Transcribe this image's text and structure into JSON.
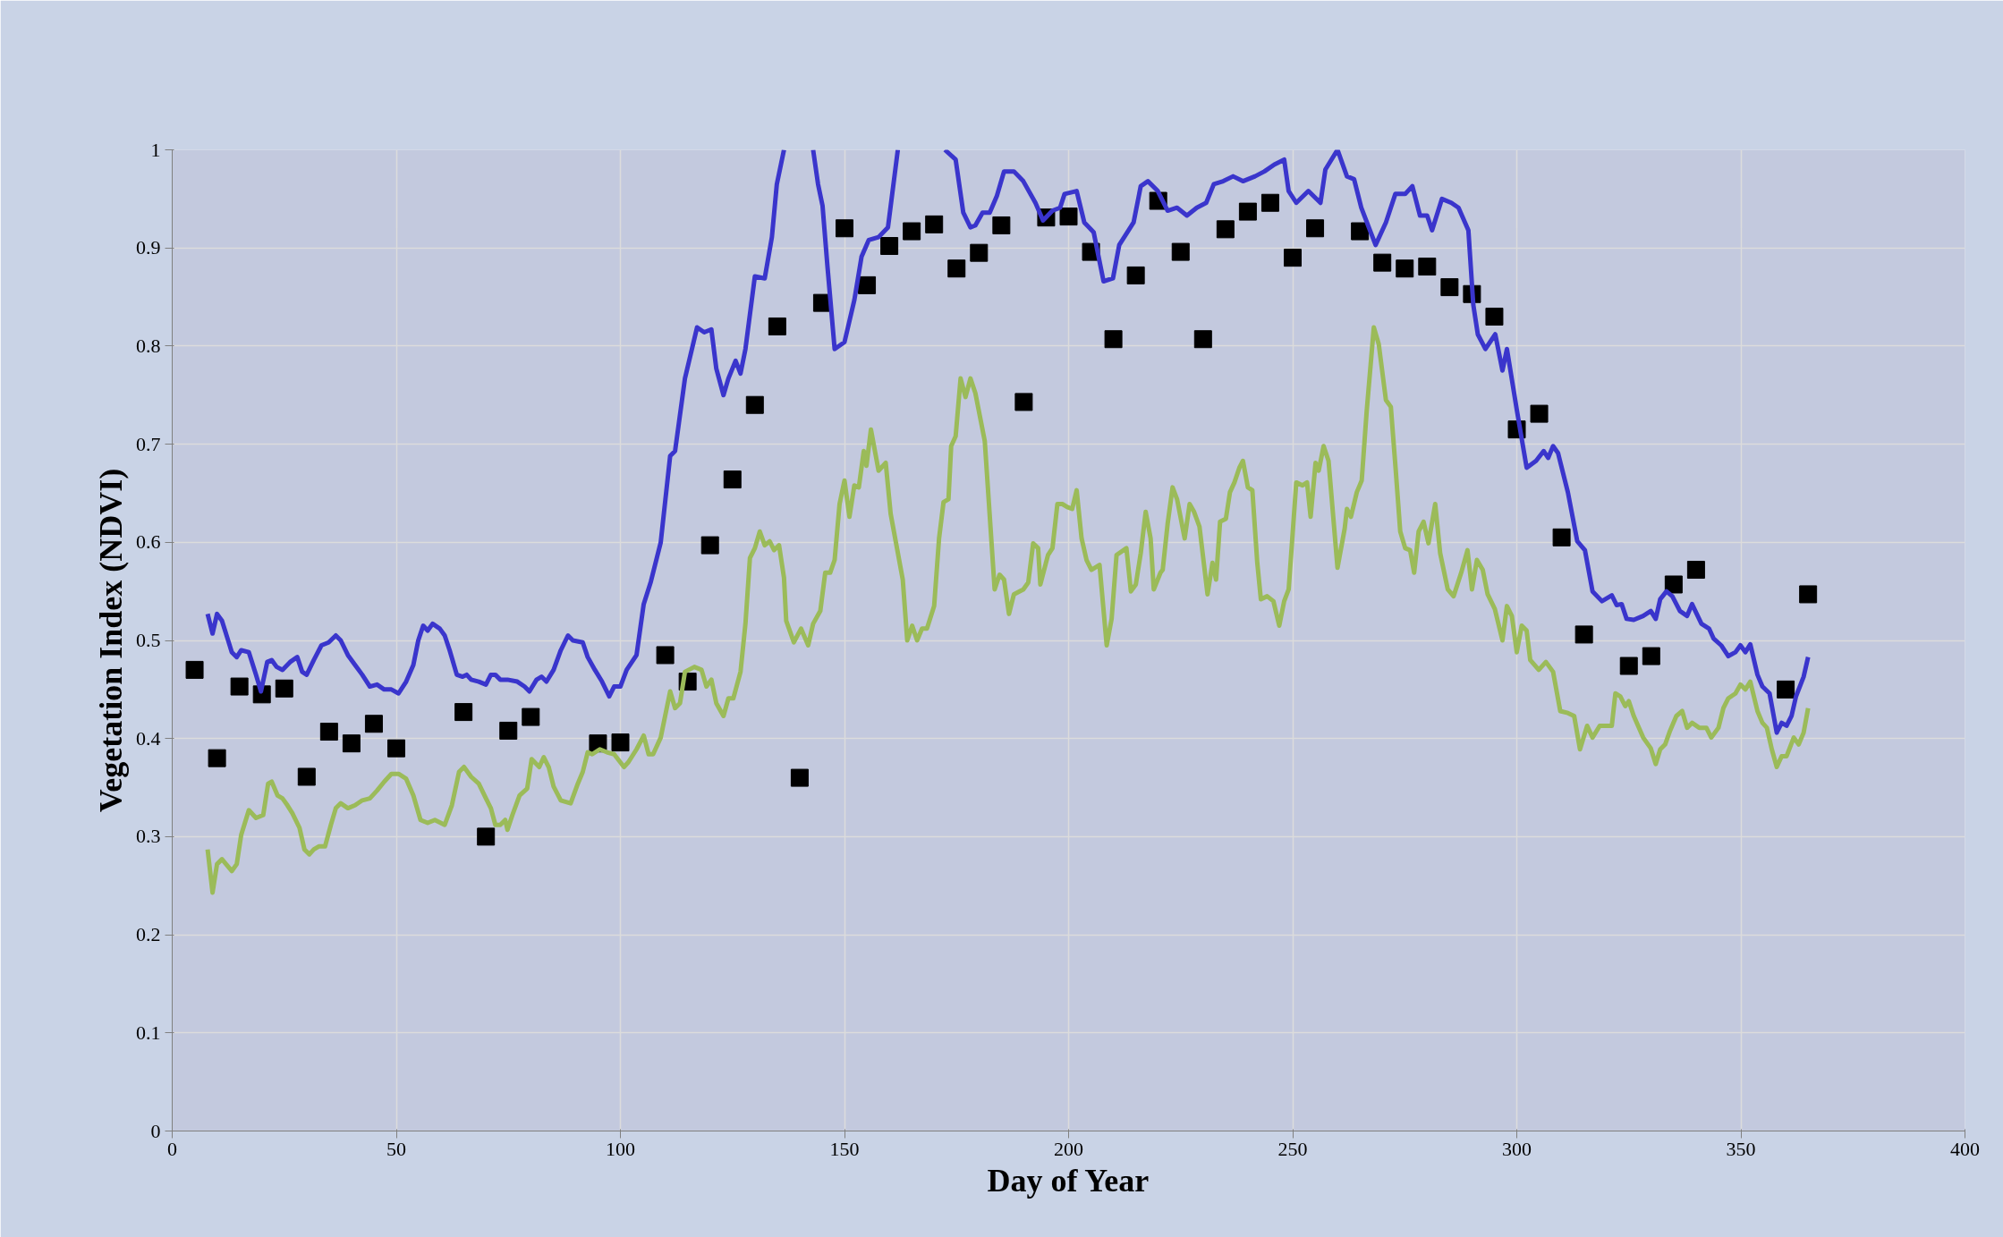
{
  "chart_data": {
    "type": "line",
    "xlabel": "Day of Year",
    "ylabel": "Vegetation Index (NDVI)",
    "xlim": [
      0,
      400
    ],
    "xticks": [
      0,
      50,
      100,
      150,
      200,
      250,
      300,
      350,
      400
    ],
    "ylim": [
      0,
      1
    ],
    "yticks": [
      0,
      0.1,
      0.2,
      0.3,
      0.4,
      0.5,
      0.6,
      0.7,
      0.8,
      0.9,
      1
    ],
    "grid": true,
    "series": [
      {
        "type": "line",
        "color": "#3a35cc",
        "marker": "none",
        "x": [
          7.9,
          9,
          10,
          11.1,
          13.3,
          14.4,
          15.4,
          17.1,
          18.7,
          19.8,
          21.2,
          22.2,
          23.3,
          24.6,
          26.3,
          27.9,
          29,
          30,
          31.6,
          33.3,
          34.9,
          36.5,
          37.6,
          39.2,
          40.8,
          42.4,
          44.1,
          45.7,
          47.3,
          48.9,
          50.5,
          52.2,
          53.8,
          54.9,
          56,
          57,
          58.1,
          59.7,
          60.8,
          61.9,
          63.5,
          64.8,
          65.7,
          66.7,
          68.4,
          70,
          71.1,
          72.1,
          73.2,
          74.8,
          77,
          78.6,
          79.7,
          81.3,
          82.4,
          83.5,
          85.1,
          86.7,
          88.3,
          89.4,
          91.6,
          92.7,
          94.3,
          95.9,
          97.5,
          98.6,
          100,
          101.4,
          103.6,
          105.2,
          106.8,
          109,
          111.1,
          112.2,
          114.4,
          117.1,
          118.7,
          120.3,
          121.4,
          123,
          124.1,
          125.7,
          126.8,
          127.9,
          130,
          132.2,
          133.8,
          134.9,
          136.5,
          140,
          143,
          144.1,
          145.1,
          146.2,
          147.8,
          150,
          152.2,
          153.8,
          155.4,
          157.6,
          159.7,
          161.9,
          167,
          172.4,
          174.8,
          176.5,
          178.1,
          179.2,
          180.8,
          182.4,
          184,
          185.6,
          187.8,
          189.9,
          192.6,
          194.3,
          196.4,
          198.1,
          199.1,
          201.8,
          203.5,
          205.6,
          207.8,
          209.9,
          211.3,
          214.5,
          216.1,
          217.7,
          219.9,
          222.1,
          224.2,
          226.4,
          228.6,
          230.7,
          232.4,
          234.5,
          236.7,
          238.9,
          241.6,
          243.7,
          245.9,
          248.1,
          249.1,
          250.8,
          253.5,
          256.2,
          257.3,
          260,
          262.1,
          263.7,
          265.3,
          268.5,
          270.8,
          272.9,
          275.1,
          276.7,
          278.4,
          280,
          281.1,
          283.3,
          285.4,
          287,
          289.2,
          290.3,
          291.3,
          293,
          295.2,
          296.8,
          297.8,
          300,
          302.2,
          304.3,
          306,
          307,
          308.1,
          309.2,
          311.4,
          313.5,
          315.2,
          316.9,
          319,
          321.2,
          322.3,
          323.4,
          324.5,
          326.1,
          328.2,
          329.9,
          331,
          332,
          333.4,
          334.7,
          336.4,
          338,
          339.1,
          341.2,
          342.9,
          343.9,
          345.6,
          347.2,
          348.8,
          349.9,
          351,
          352.1,
          353.7,
          354.8,
          356.4,
          358,
          359.1,
          360.2,
          361.3,
          362.3,
          364,
          365
        ],
        "values": [
          0.527,
          0.507,
          0.527,
          0.52,
          0.488,
          0.483,
          0.49,
          0.488,
          0.465,
          0.448,
          0.478,
          0.48,
          0.473,
          0.47,
          0.478,
          0.483,
          0.468,
          0.465,
          0.48,
          0.495,
          0.498,
          0.505,
          0.5,
          0.485,
          0.475,
          0.465,
          0.453,
          0.455,
          0.45,
          0.45,
          0.446,
          0.458,
          0.475,
          0.5,
          0.515,
          0.51,
          0.517,
          0.512,
          0.505,
          0.49,
          0.465,
          0.463,
          0.465,
          0.46,
          0.458,
          0.455,
          0.465,
          0.465,
          0.46,
          0.46,
          0.458,
          0.453,
          0.448,
          0.46,
          0.463,
          0.458,
          0.47,
          0.49,
          0.505,
          0.5,
          0.498,
          0.483,
          0.47,
          0.458,
          0.443,
          0.453,
          0.453,
          0.47,
          0.485,
          0.537,
          0.56,
          0.6,
          0.688,
          0.693,
          0.767,
          0.819,
          0.814,
          0.817,
          0.777,
          0.75,
          0.767,
          0.785,
          0.772,
          0.797,
          0.871,
          0.869,
          0.911,
          0.965,
          1.0,
          null,
          1.0,
          0.965,
          0.943,
          0.881,
          0.797,
          0.804,
          0.847,
          0.891,
          0.908,
          0.911,
          0.921,
          1.0,
          null,
          1.0,
          0.99,
          0.936,
          0.921,
          0.923,
          0.936,
          0.936,
          0.953,
          0.978,
          0.978,
          0.968,
          0.946,
          0.928,
          0.938,
          0.941,
          0.955,
          0.958,
          0.926,
          0.916,
          0.866,
          0.869,
          0.903,
          0.926,
          0.963,
          0.968,
          0.958,
          0.938,
          0.941,
          0.933,
          0.941,
          0.946,
          0.965,
          0.968,
          0.973,
          0.968,
          0.973,
          0.978,
          0.985,
          0.99,
          0.958,
          0.946,
          0.958,
          0.946,
          0.98,
          1.0,
          0.973,
          0.97,
          0.941,
          0.903,
          0.926,
          0.955,
          0.955,
          0.963,
          0.933,
          0.933,
          0.918,
          0.95,
          0.946,
          0.941,
          0.918,
          0.842,
          0.812,
          0.797,
          0.812,
          0.775,
          0.797,
          0.735,
          0.676,
          0.683,
          0.693,
          0.686,
          0.698,
          0.691,
          0.651,
          0.601,
          0.592,
          0.55,
          0.54,
          0.546,
          0.536,
          0.537,
          0.522,
          0.521,
          0.525,
          0.53,
          0.522,
          0.542,
          0.55,
          0.545,
          0.53,
          0.525,
          0.537,
          0.517,
          0.512,
          0.502,
          0.495,
          0.484,
          0.488,
          0.495,
          0.488,
          0.496,
          0.465,
          0.453,
          0.446,
          0.406,
          0.416,
          0.413,
          0.423,
          0.443,
          0.463,
          0.483
        ]
      },
      {
        "type": "line",
        "color": "#9bbb59",
        "marker": "none",
        "x": [
          7.9,
          9,
          10,
          11.1,
          13.3,
          14.4,
          15.4,
          17.1,
          18.7,
          20.3,
          21.4,
          22.2,
          23.5,
          24.6,
          25.7,
          26.8,
          28.4,
          29.5,
          30.6,
          31.6,
          32.7,
          34.1,
          35.4,
          36.5,
          37.6,
          39.2,
          40.8,
          42.4,
          44.1,
          45.7,
          47.3,
          48.9,
          50.5,
          52.2,
          53.8,
          55.4,
          57,
          58.6,
          60.8,
          62.4,
          64,
          65.1,
          66.7,
          68.4,
          70,
          71.1,
          72.1,
          73.2,
          74.3,
          74.8,
          75.9,
          77.5,
          79.2,
          80.2,
          81.9,
          82.9,
          84,
          85.1,
          86.7,
          88.9,
          90.5,
          91.6,
          92.7,
          93.7,
          95.4,
          97,
          98.6,
          100.8,
          101.8,
          103.6,
          105.2,
          106.3,
          107.3,
          109,
          111.1,
          112.2,
          113.3,
          114.4,
          116.5,
          118.1,
          119.2,
          120.3,
          121.4,
          123,
          124.1,
          125.2,
          126.8,
          127.9,
          128.9,
          130,
          131.1,
          132.2,
          133.3,
          134.3,
          135.4,
          136.5,
          137,
          138.7,
          140.3,
          141.9,
          143,
          144.6,
          145.7,
          146.8,
          147.8,
          148.9,
          150,
          151.1,
          152.2,
          153.2,
          154.3,
          154.9,
          155.9,
          157.6,
          159.2,
          160.3,
          163,
          164,
          165.1,
          166.2,
          167.3,
          168.4,
          170,
          171.1,
          172.1,
          173.2,
          173.8,
          174.8,
          175.9,
          177,
          178.1,
          179.2,
          181.3,
          183.5,
          184.6,
          185.6,
          186.7,
          187.8,
          189.9,
          191,
          192.1,
          193.2,
          193.7,
          195.4,
          196.4,
          197.5,
          198.6,
          199.7,
          200.8,
          201.8,
          202.9,
          204,
          205.1,
          206.9,
          208.5,
          209.6,
          210.7,
          212.9,
          213.9,
          215,
          216.1,
          217.2,
          218.3,
          219,
          220.5,
          221,
          222.1,
          223.2,
          224.2,
          225.9,
          227,
          228,
          229.2,
          231,
          232.1,
          232.9,
          233.8,
          235.1,
          236,
          237,
          238.1,
          238.9,
          240,
          241,
          242.1,
          242.9,
          244.3,
          245.7,
          247,
          248.1,
          249.1,
          250.8,
          252.2,
          253.2,
          254,
          255.1,
          255.8,
          256.9,
          258,
          260,
          261.6,
          262.1,
          263,
          264.3,
          265.4,
          266.5,
          268.1,
          269.2,
          270.8,
          271.9,
          273,
          274,
          275.1,
          276.2,
          277.1,
          278.1,
          279.2,
          280.3,
          281.8,
          282.9,
          284.6,
          285.9,
          287.6,
          289,
          290,
          291.1,
          292.4,
          293.5,
          295.1,
          296.8,
          297.8,
          298.9,
          300,
          301.1,
          302.2,
          303,
          304.9,
          306.5,
          308.1,
          309.7,
          311.4,
          312.8,
          314.1,
          315.7,
          316.9,
          318.5,
          320.1,
          321.2,
          322,
          323.1,
          324.2,
          325,
          326.1,
          328.2,
          329.9,
          331,
          332,
          333.1,
          334.2,
          335.6,
          336.9,
          338,
          339.1,
          340.7,
          342.3,
          343.4,
          345,
          346.1,
          347.2,
          348.8,
          349.9,
          351,
          352.1,
          353.7,
          354.8,
          355.8,
          356.9,
          358,
          359.1,
          360.2,
          361.8,
          362.9,
          364,
          365
        ],
        "values": [
          0.287,
          0.243,
          0.272,
          0.277,
          0.265,
          0.272,
          0.302,
          0.327,
          0.319,
          0.322,
          0.354,
          0.356,
          0.342,
          0.339,
          0.332,
          0.324,
          0.309,
          0.287,
          0.282,
          0.287,
          0.29,
          0.29,
          0.312,
          0.329,
          0.334,
          0.329,
          0.332,
          0.337,
          0.339,
          0.347,
          0.356,
          0.364,
          0.364,
          0.359,
          0.342,
          0.317,
          0.314,
          0.317,
          0.312,
          0.332,
          0.366,
          0.371,
          0.361,
          0.354,
          0.339,
          0.329,
          0.312,
          0.312,
          0.317,
          0.307,
          0.322,
          0.342,
          0.349,
          0.379,
          0.371,
          0.381,
          0.371,
          0.351,
          0.337,
          0.334,
          0.354,
          0.366,
          0.386,
          0.384,
          0.389,
          0.386,
          0.384,
          0.371,
          0.376,
          0.389,
          0.403,
          0.384,
          0.384,
          0.401,
          0.448,
          0.431,
          0.436,
          0.468,
          0.473,
          0.47,
          0.453,
          0.46,
          0.436,
          0.423,
          0.441,
          0.441,
          0.468,
          0.517,
          0.584,
          0.594,
          0.611,
          0.597,
          0.601,
          0.592,
          0.597,
          0.564,
          0.52,
          0.498,
          0.512,
          0.495,
          0.517,
          0.53,
          0.569,
          0.569,
          0.582,
          0.639,
          0.663,
          0.626,
          0.658,
          0.656,
          0.693,
          0.678,
          0.715,
          0.673,
          0.681,
          0.629,
          0.562,
          0.5,
          0.515,
          0.5,
          0.512,
          0.512,
          0.535,
          0.604,
          0.641,
          0.644,
          0.698,
          0.708,
          0.767,
          0.748,
          0.767,
          0.752,
          0.703,
          0.552,
          0.567,
          0.562,
          0.527,
          0.547,
          0.552,
          0.559,
          0.599,
          0.594,
          0.557,
          0.587,
          0.594,
          0.639,
          0.639,
          0.636,
          0.634,
          0.653,
          0.604,
          0.582,
          0.572,
          0.577,
          0.495,
          0.522,
          0.587,
          0.594,
          0.55,
          0.557,
          0.589,
          0.631,
          0.604,
          0.552,
          0.569,
          0.572,
          0.619,
          0.656,
          0.644,
          0.604,
          0.639,
          0.631,
          0.616,
          0.547,
          0.579,
          0.562,
          0.621,
          0.624,
          0.651,
          0.661,
          0.676,
          0.683,
          0.656,
          0.653,
          0.579,
          0.542,
          0.545,
          0.54,
          0.515,
          0.54,
          0.552,
          0.661,
          0.658,
          0.661,
          0.626,
          0.681,
          0.673,
          0.698,
          0.683,
          0.574,
          0.614,
          0.634,
          0.626,
          0.651,
          0.663,
          0.733,
          0.819,
          0.802,
          0.745,
          0.738,
          0.673,
          0.611,
          0.594,
          0.592,
          0.569,
          0.611,
          0.621,
          0.599,
          0.639,
          0.589,
          0.552,
          0.545,
          0.569,
          0.592,
          0.552,
          0.582,
          0.572,
          0.547,
          0.532,
          0.5,
          0.535,
          0.525,
          0.488,
          0.515,
          0.51,
          0.48,
          0.47,
          0.478,
          0.468,
          0.428,
          0.426,
          0.423,
          0.389,
          0.413,
          0.401,
          0.413,
          0.413,
          0.413,
          0.446,
          0.443,
          0.433,
          0.438,
          0.423,
          0.401,
          0.39,
          0.374,
          0.389,
          0.394,
          0.408,
          0.423,
          0.428,
          0.411,
          0.416,
          0.411,
          0.411,
          0.401,
          0.411,
          0.431,
          0.441,
          0.446,
          0.455,
          0.45,
          0.458,
          0.428,
          0.416,
          0.411,
          0.389,
          0.371,
          0.382,
          0.382,
          0.401,
          0.394,
          0.406,
          0.431
        ]
      },
      {
        "type": "scatter",
        "color": "#000000",
        "marker": "square",
        "x": [
          5,
          10,
          15,
          20,
          25,
          30,
          35,
          40,
          45,
          50,
          65,
          70,
          75,
          80,
          95,
          100,
          110,
          115,
          120,
          125,
          130,
          135,
          140,
          145,
          150,
          155,
          160,
          165,
          170,
          175,
          180,
          185,
          190,
          195,
          200,
          205,
          210,
          215,
          220,
          225,
          230,
          235,
          240,
          245,
          250,
          255,
          265,
          270,
          275,
          280,
          285,
          290,
          295,
          300,
          305,
          310,
          315,
          325,
          330,
          335,
          340,
          360,
          365
        ],
        "values": [
          0.47,
          0.38,
          0.453,
          0.445,
          0.451,
          0.361,
          0.407,
          0.395,
          0.415,
          0.39,
          0.427,
          0.3,
          0.408,
          0.422,
          0.395,
          0.396,
          0.485,
          0.458,
          0.597,
          0.664,
          0.74,
          0.82,
          0.36,
          0.844,
          0.92,
          0.862,
          0.902,
          0.917,
          0.924,
          0.879,
          0.895,
          0.923,
          0.743,
          0.931,
          0.932,
          0.896,
          0.807,
          0.872,
          0.948,
          0.896,
          0.807,
          0.919,
          0.937,
          0.946,
          0.89,
          0.92,
          0.917,
          0.885,
          0.879,
          0.881,
          0.86,
          0.853,
          0.83,
          0.715,
          0.731,
          0.605,
          0.506,
          0.474,
          0.484,
          0.557,
          0.572,
          0.45,
          0.547
        ]
      }
    ]
  }
}
